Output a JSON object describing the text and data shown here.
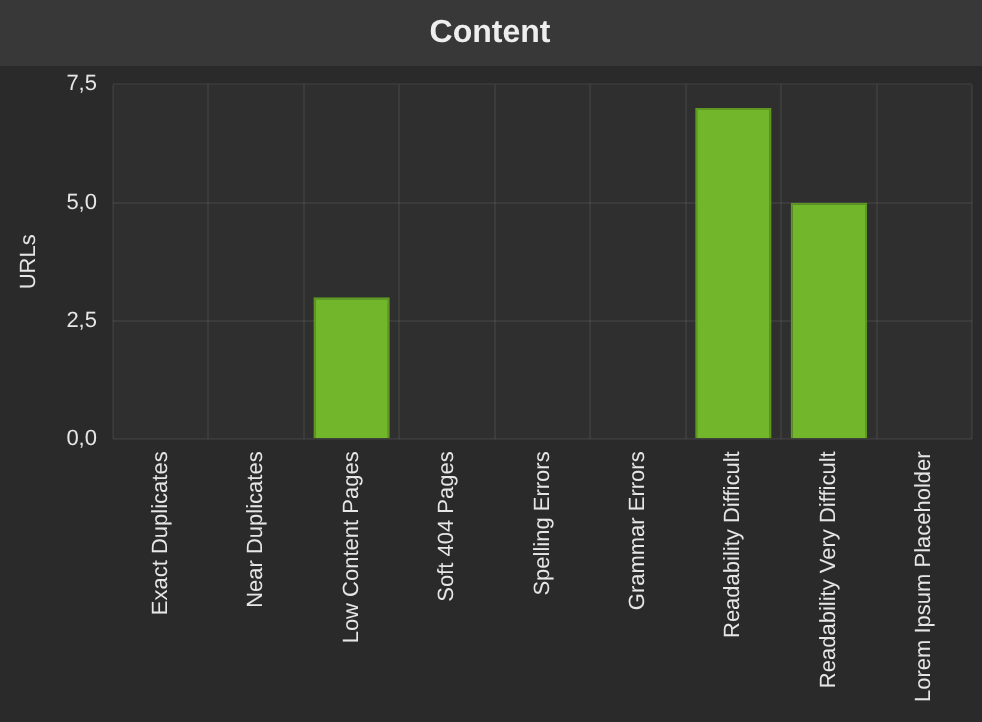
{
  "chart_data": {
    "type": "bar",
    "title": "Content",
    "ylabel": "URLs",
    "categories": [
      "Exact Duplicates",
      "Near Duplicates",
      "Low Content Pages",
      "Soft 404 Pages",
      "Spelling Errors",
      "Grammar Errors",
      "Readability Difficult",
      "Readability Very Difficult",
      "Lorem Ipsum Placeholder"
    ],
    "values": [
      0,
      0,
      3,
      0,
      0,
      0,
      7,
      5,
      0
    ],
    "color": "#72b62c",
    "ylim": [
      0,
      7.5
    ],
    "yticks": [
      {
        "value": 0,
        "label": "0,0"
      },
      {
        "value": 2.5,
        "label": "2,5"
      },
      {
        "value": 5,
        "label": "5,0"
      },
      {
        "value": 7.5,
        "label": "7,5"
      }
    ],
    "grid": true
  }
}
